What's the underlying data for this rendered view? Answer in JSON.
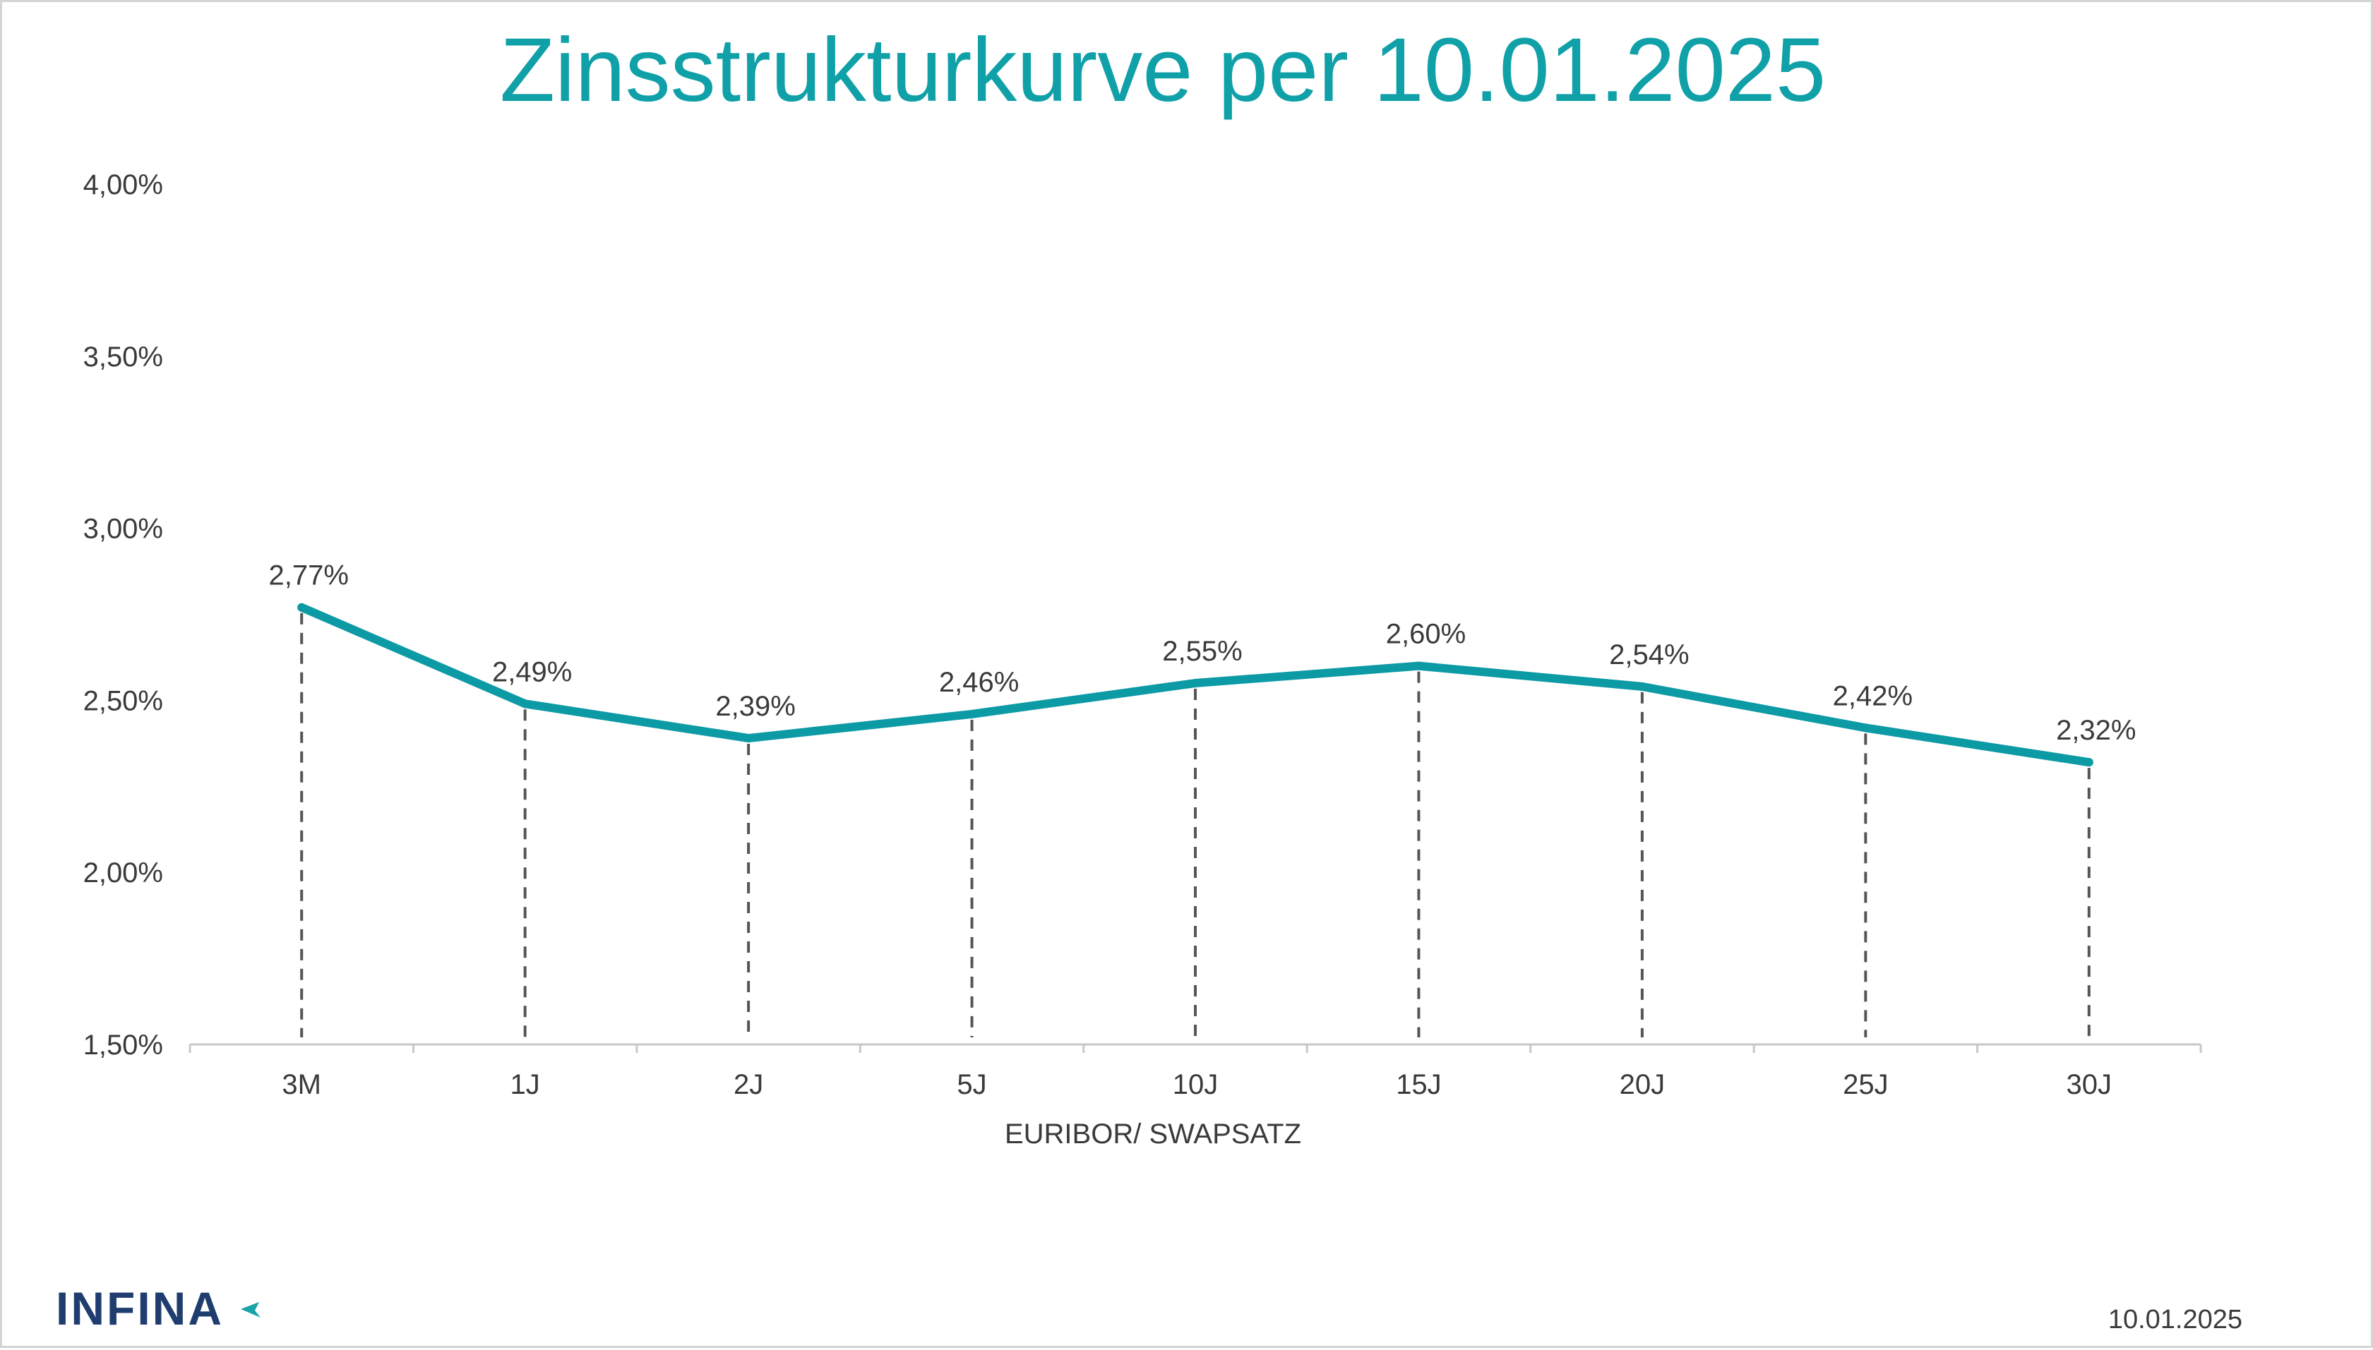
{
  "chart_data": {
    "type": "line",
    "title": "Zinsstrukturkurve per 10.01.2025",
    "xlabel": "EURIBOR/ SWAPSATZ",
    "ylabel": "",
    "categories": [
      "3M",
      "1J",
      "2J",
      "5J",
      "10J",
      "15J",
      "20J",
      "25J",
      "30J"
    ],
    "series": [
      {
        "values": [
          2.77,
          2.49,
          2.39,
          2.46,
          2.55,
          2.6,
          2.54,
          2.42,
          2.32
        ],
        "data_labels": [
          "2,77%",
          "2,49%",
          "2,39%",
          "2,46%",
          "2,55%",
          "2,60%",
          "2,54%",
          "2,42%",
          "2,32%"
        ],
        "color": "#0c9aa5"
      }
    ],
    "ylim": [
      1.5,
      4.0
    ],
    "y_ticks": [
      4.0,
      3.5,
      3.0,
      2.5,
      2.0,
      1.5
    ],
    "y_tick_labels": [
      "4,00%",
      "3,50%",
      "3,00%",
      "2,50%",
      "2,00%",
      "1,50%"
    ],
    "drop_lines": true,
    "grid": false,
    "colors": {
      "title": "#10a0a8",
      "line": "#0c9aa5",
      "text": "#3a3a3a",
      "axis": "#c8c8c8",
      "drop_line": "#555555"
    }
  },
  "logo": {
    "text": "INFINA",
    "color": "#1f3d6e",
    "accent": "#18a3a6"
  },
  "footer": {
    "date": "10.01.2025"
  }
}
